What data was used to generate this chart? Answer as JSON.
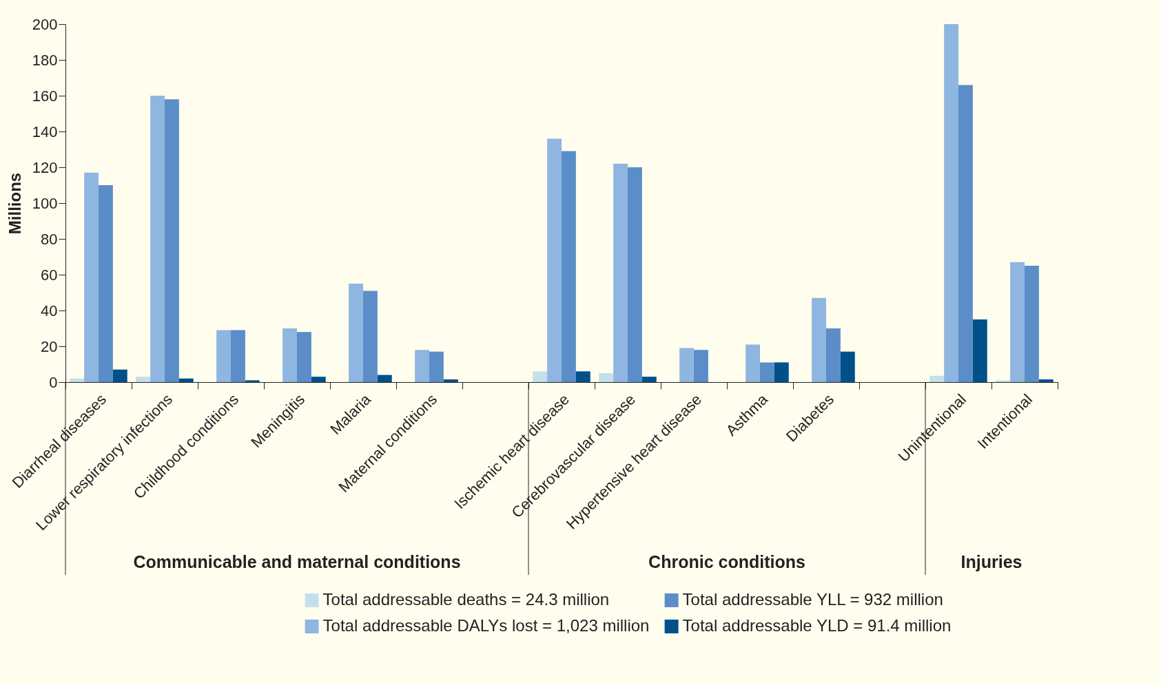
{
  "chart_data": {
    "type": "bar",
    "ylabel": "Millions",
    "categories": [
      "Diarrheal diseases",
      "Lower respiratory infections",
      "Childhood conditions",
      "Meningitis",
      "Malaria",
      "Maternal conditions",
      null,
      "Ischemic heart disease",
      "Cerebrovascular disease",
      "Hypertensive heart disease",
      "Asthma",
      "Diabetes",
      null,
      "Unintentional",
      "Intentional"
    ],
    "series": [
      {
        "name": "Total addressable deaths = 24.3 million",
        "color": "#c5dfea",
        "values": [
          2,
          3,
          null,
          null,
          null,
          null,
          null,
          6,
          5,
          null,
          null,
          null,
          null,
          3.5,
          1
        ]
      },
      {
        "name": "Total addressable DALYs lost = 1,023 million",
        "color": "#8fb6e0",
        "values": [
          117,
          160,
          29,
          30,
          55,
          18,
          null,
          136,
          122,
          19,
          21,
          47,
          null,
          200,
          67
        ]
      },
      {
        "name": "Total addressable YLL = 932 million",
        "color": "#5b8ec8",
        "values": [
          110,
          158,
          29,
          28,
          51,
          17,
          null,
          129,
          120,
          18,
          11,
          30,
          null,
          166,
          65
        ]
      },
      {
        "name": "Total addressable YLD = 91.4 million",
        "color": "#00508a",
        "values": [
          7,
          2,
          1,
          3,
          4,
          1.5,
          null,
          6,
          3,
          null,
          11,
          17,
          null,
          35,
          1.5
        ]
      }
    ],
    "annotations": [
      "Communicable and maternal conditions",
      "Chronic conditions",
      "Injuries"
    ],
    "ylim": [
      0,
      200
    ],
    "yticks": [
      0,
      20,
      40,
      60,
      80,
      100,
      120,
      140,
      160,
      180,
      200
    ],
    "grid": false,
    "legend": "bottom"
  }
}
